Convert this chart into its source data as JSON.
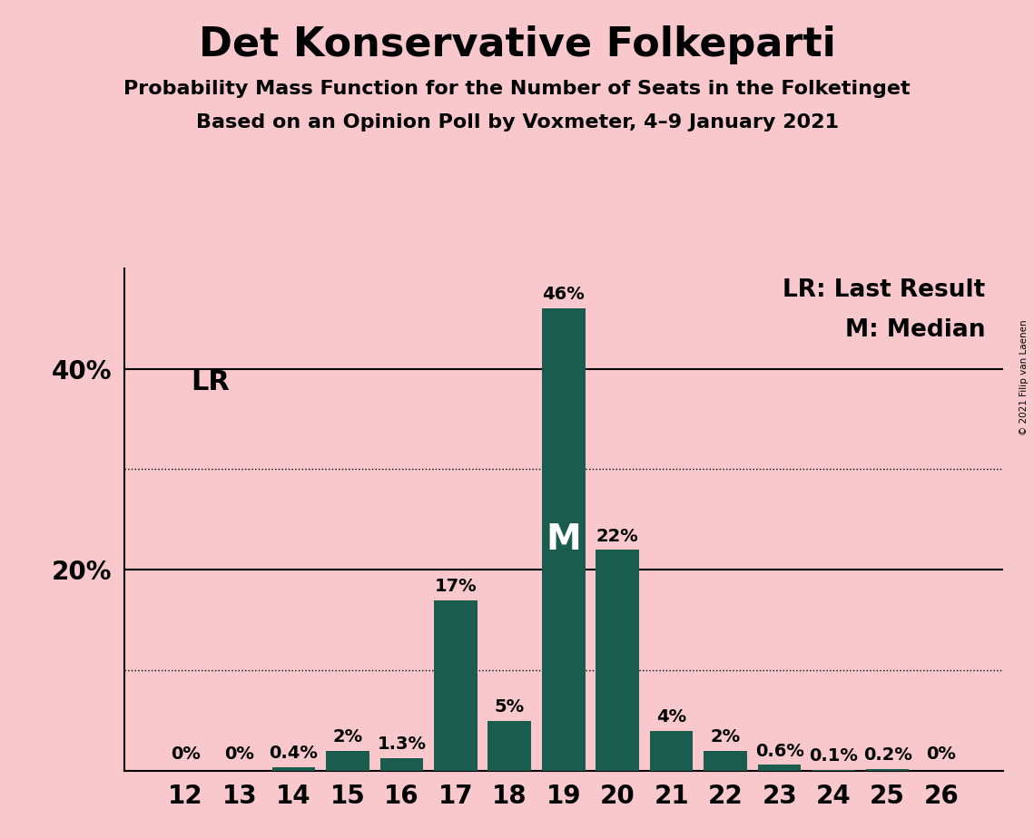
{
  "title": "Det Konservative Folkeparti",
  "subtitle1": "Probability Mass Function for the Number of Seats in the Folketinget",
  "subtitle2": "Based on an Opinion Poll by Voxmeter, 4–9 January 2021",
  "copyright": "© 2021 Filip van Laenen",
  "categories": [
    12,
    13,
    14,
    15,
    16,
    17,
    18,
    19,
    20,
    21,
    22,
    23,
    24,
    25,
    26
  ],
  "values": [
    0.0,
    0.0,
    0.4,
    2.0,
    1.3,
    17.0,
    5.0,
    46.0,
    22.0,
    4.0,
    2.0,
    0.6,
    0.1,
    0.2,
    0.0
  ],
  "labels": [
    "0%",
    "0%",
    "0.4%",
    "2%",
    "1.3%",
    "17%",
    "5%",
    "46%",
    "22%",
    "4%",
    "2%",
    "0.6%",
    "0.1%",
    "0.2%",
    "0%"
  ],
  "show_label": [
    true,
    true,
    true,
    true,
    true,
    true,
    true,
    true,
    true,
    true,
    true,
    true,
    true,
    true,
    true
  ],
  "bar_color": "#1a5c4e",
  "background_color": "#f8c8cc",
  "median_seat": 19,
  "lr_seat": 12,
  "legend_lr": "LR: Last Result",
  "legend_m": "M: Median",
  "ylim": [
    0,
    50
  ],
  "yticks_labeled": [
    20,
    40
  ],
  "ytick_labels": [
    "20%",
    "40%"
  ],
  "solid_yticks": [
    20,
    40
  ],
  "dotted_yticks": [
    10,
    30
  ],
  "title_fontsize": 32,
  "subtitle_fontsize": 16,
  "tick_fontsize": 20,
  "label_fontsize": 14,
  "legend_fontsize": 19,
  "lr_fontsize": 22,
  "m_fontsize": 28
}
